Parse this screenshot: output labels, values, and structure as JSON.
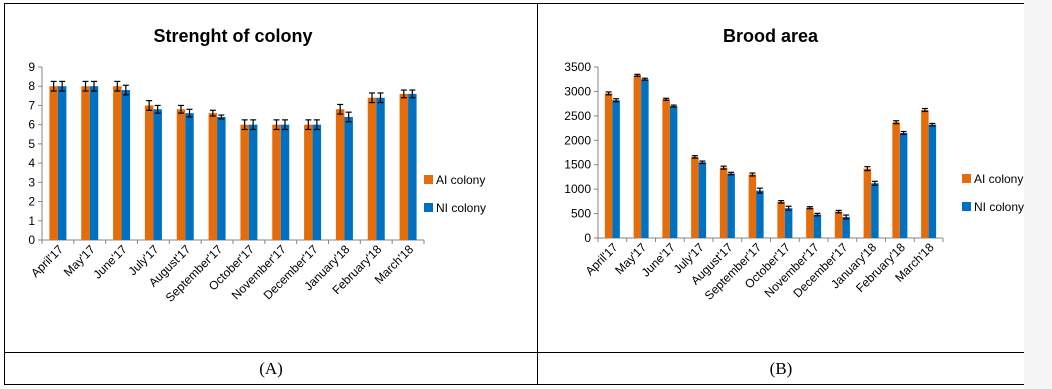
{
  "colors": {
    "ai": "#E46C0A",
    "ni": "#0070C0",
    "axis": "#868686",
    "text": "#000000"
  },
  "captions": [
    "(A)",
    "(B)"
  ],
  "chart_data": [
    {
      "type": "bar",
      "title": "Strenght of colony",
      "categories": [
        "April'17",
        "May'17",
        "June'17",
        "July'17",
        "August'17",
        "September'17",
        "October'17",
        "November'17",
        "December'17",
        "January'18",
        "February'18",
        "March'18"
      ],
      "series": [
        {
          "name": "AI colony",
          "values": [
            8.0,
            8.0,
            8.0,
            7.0,
            6.8,
            6.6,
            6.0,
            6.0,
            6.0,
            6.8,
            7.4,
            7.6
          ],
          "errors": [
            0.25,
            0.25,
            0.25,
            0.25,
            0.2,
            0.15,
            0.25,
            0.25,
            0.25,
            0.25,
            0.25,
            0.2
          ]
        },
        {
          "name": "NI colony",
          "values": [
            8.0,
            8.0,
            7.8,
            6.8,
            6.6,
            6.4,
            6.0,
            6.0,
            6.0,
            6.4,
            7.4,
            7.6
          ],
          "errors": [
            0.25,
            0.25,
            0.25,
            0.2,
            0.2,
            0.1,
            0.25,
            0.25,
            0.25,
            0.25,
            0.25,
            0.2
          ]
        }
      ],
      "ylim": [
        0,
        9
      ],
      "yticks": [
        "0",
        "1",
        "2",
        "3",
        "4",
        "5",
        "6",
        "7",
        "8",
        "9"
      ],
      "grid": false,
      "legend": "right"
    },
    {
      "type": "bar",
      "title": "Brood area",
      "categories": [
        "April'17",
        "May'17",
        "June'17",
        "July'17",
        "August'17",
        "September'17",
        "October'17",
        "November'17",
        "December'17",
        "January'18",
        "February'18",
        "March'18"
      ],
      "series": [
        {
          "name": "AI colony",
          "values": [
            2960,
            3330,
            2840,
            1660,
            1440,
            1300,
            740,
            620,
            540,
            1420,
            2370,
            2620
          ],
          "errors": [
            30,
            20,
            20,
            25,
            30,
            30,
            25,
            20,
            25,
            40,
            30,
            30
          ]
        },
        {
          "name": "NI colony",
          "values": [
            2820,
            3250,
            2700,
            1550,
            1320,
            970,
            610,
            480,
            430,
            1120,
            2150,
            2320
          ],
          "errors": [
            30,
            20,
            20,
            25,
            25,
            50,
            40,
            25,
            40,
            40,
            30,
            25
          ]
        }
      ],
      "ylim": [
        0,
        3500
      ],
      "yticks": [
        "0",
        "500",
        "1000",
        "1500",
        "2000",
        "2500",
        "3000",
        "3500"
      ],
      "grid": false,
      "legend": "right"
    }
  ]
}
